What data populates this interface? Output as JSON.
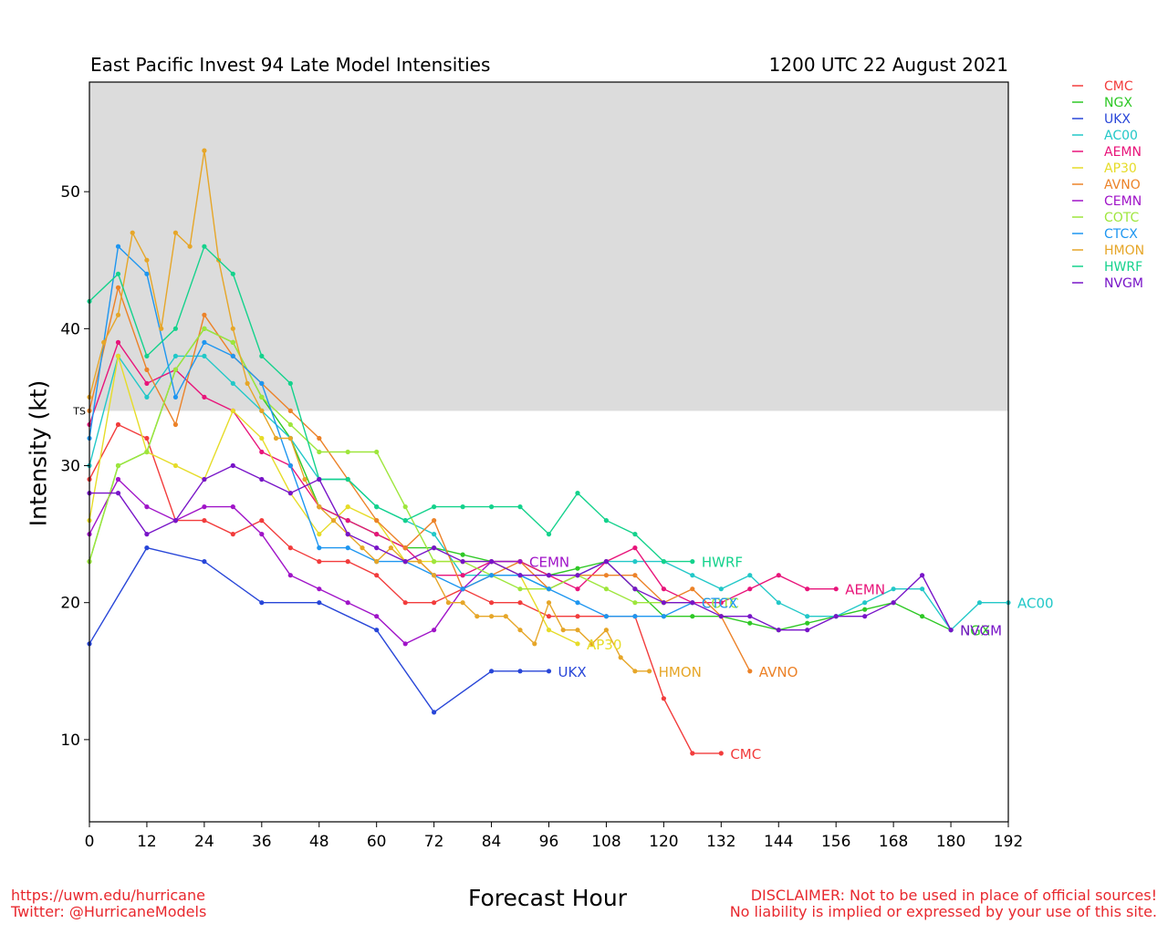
{
  "header": {
    "title": "East Pacific Invest 94 Late Model Intensities",
    "datetime": "1200 UTC 22 August 2021"
  },
  "footer": {
    "url": "https://uwm.edu/hurricane",
    "twitter": "Twitter: @HurricaneModels",
    "disclaimer_line1": "DISCLAIMER: Not to be used in place of official sources!",
    "disclaimer_line2": "No liability is implied or expressed by your use of this site."
  },
  "chart_data": {
    "type": "line",
    "xlabel": "Forecast Hour",
    "ylabel": "Intensity (kt)",
    "xlim": [
      0,
      192
    ],
    "ylim": [
      4,
      58
    ],
    "xticks": [
      0,
      12,
      24,
      36,
      48,
      60,
      72,
      84,
      96,
      108,
      120,
      132,
      144,
      156,
      168,
      180,
      192
    ],
    "yticks": [
      10,
      20,
      30,
      40,
      50
    ],
    "grid": false,
    "legend_position": "right-outside",
    "threshold": {
      "label": "TS",
      "value": 34,
      "shade_above": true,
      "shade_color": "#dcdcdc"
    },
    "series": [
      {
        "name": "CMC",
        "color": "#f23c3c",
        "x": [
          0,
          6,
          12,
          18,
          24,
          30,
          36,
          42,
          48,
          54,
          60,
          66,
          72,
          78,
          84,
          90,
          96,
          102,
          108,
          114,
          120,
          126,
          132
        ],
        "y": [
          29,
          33,
          32,
          26,
          26,
          25,
          26,
          24,
          23,
          23,
          22,
          20,
          20,
          21,
          20,
          20,
          19,
          19,
          19,
          19,
          13,
          9,
          9
        ]
      },
      {
        "name": "NGX",
        "color": "#2ec825",
        "x": [
          0,
          6,
          12,
          18,
          24,
          30,
          36,
          42,
          48,
          54,
          60,
          66,
          72,
          78,
          84,
          90,
          96,
          102,
          108,
          114,
          120,
          126,
          132,
          138,
          144,
          150,
          156,
          162,
          168,
          174,
          180
        ],
        "y": [
          23,
          30,
          31,
          37,
          40,
          39,
          35,
          32,
          27,
          26,
          25,
          24,
          24,
          23.5,
          23,
          23,
          22,
          22.5,
          23,
          21,
          19,
          19,
          19,
          18.5,
          18,
          18.5,
          19,
          19.5,
          20,
          19,
          18
        ]
      },
      {
        "name": "UKX",
        "color": "#2846d8",
        "x": [
          0,
          12,
          24,
          36,
          48,
          60,
          72,
          84,
          90,
          96
        ],
        "y": [
          17,
          24,
          23,
          20,
          20,
          18,
          12,
          15,
          15,
          15
        ]
      },
      {
        "name": "AC00",
        "color": "#22c8c8",
        "x": [
          0,
          6,
          12,
          18,
          24,
          30,
          36,
          42,
          48,
          54,
          60,
          66,
          72,
          78,
          84,
          90,
          96,
          102,
          108,
          114,
          120,
          126,
          132,
          138,
          144,
          150,
          156,
          162,
          168,
          174,
          180,
          186,
          192
        ],
        "y": [
          30,
          38,
          35,
          38,
          38,
          36,
          34,
          32,
          29,
          29,
          27,
          26,
          25,
          22,
          22,
          22,
          21,
          22,
          23,
          23,
          23,
          22,
          21,
          22,
          20,
          19,
          19,
          20,
          21,
          21,
          18,
          20,
          20
        ]
      },
      {
        "name": "AEMN",
        "color": "#e8147a",
        "x": [
          0,
          6,
          12,
          18,
          24,
          30,
          36,
          42,
          48,
          54,
          60,
          66,
          72,
          78,
          84,
          90,
          96,
          102,
          108,
          114,
          120,
          126,
          132,
          138,
          144,
          150,
          156
        ],
        "y": [
          33,
          39,
          36,
          37,
          35,
          34,
          31,
          30,
          27,
          26,
          25,
          24,
          22,
          22,
          23,
          23,
          22,
          21,
          23,
          24,
          21,
          20,
          20,
          21,
          22,
          21,
          21
        ]
      },
      {
        "name": "AP30",
        "color": "#e6dc28",
        "x": [
          0,
          6,
          12,
          18,
          24,
          30,
          36,
          42,
          48,
          54,
          60,
          66,
          72,
          78,
          84,
          90,
          96,
          102
        ],
        "y": [
          26,
          38,
          31,
          30,
          29,
          34,
          32,
          28,
          25,
          27,
          26,
          23,
          23,
          23,
          23,
          22,
          18,
          17
        ]
      },
      {
        "name": "AVNO",
        "color": "#ec8228",
        "x": [
          0,
          6,
          12,
          18,
          24,
          30,
          36,
          42,
          48,
          54,
          60,
          66,
          72,
          78,
          84,
          90,
          96,
          102,
          108,
          114,
          120,
          126,
          132,
          138
        ],
        "y": [
          34,
          43,
          37,
          33,
          41,
          38,
          36,
          34,
          32,
          29,
          26,
          24,
          26,
          21,
          22,
          23,
          21,
          22,
          22,
          22,
          20,
          21,
          19,
          15
        ]
      },
      {
        "name": "CEMN",
        "color": "#a014c8",
        "x": [
          0,
          6,
          12,
          18,
          24,
          30,
          36,
          42,
          48,
          54,
          60,
          66,
          72,
          78,
          84,
          90
        ],
        "y": [
          25,
          29,
          27,
          26,
          27,
          27,
          25,
          22,
          21,
          20,
          19,
          17,
          18,
          21,
          23,
          23
        ]
      },
      {
        "name": "COTC",
        "color": "#9ee63c",
        "x": [
          0,
          6,
          12,
          18,
          24,
          30,
          36,
          42,
          48,
          54,
          60,
          66,
          72,
          78,
          84,
          90,
          96,
          102,
          108,
          114,
          120,
          126
        ],
        "y": [
          23,
          30,
          31,
          37,
          40,
          39,
          35,
          33,
          31,
          31,
          31,
          27,
          23,
          23,
          22,
          21,
          21,
          22,
          21,
          20,
          20,
          20
        ]
      },
      {
        "name": "CTCX",
        "color": "#1e96f0",
        "x": [
          0,
          6,
          12,
          18,
          24,
          30,
          36,
          42,
          48,
          54,
          60,
          66,
          72,
          78,
          84,
          90,
          96,
          102,
          108,
          114,
          120,
          126
        ],
        "y": [
          32,
          46,
          44,
          35,
          39,
          38,
          36,
          30,
          24,
          24,
          23,
          23,
          22,
          21,
          22,
          22,
          21,
          20,
          19,
          19,
          19,
          20
        ]
      },
      {
        "name": "HMON",
        "color": "#e6a628",
        "x": [
          0,
          3,
          6,
          9,
          12,
          15,
          18,
          21,
          24,
          27,
          30,
          33,
          36,
          39,
          42,
          45,
          48,
          51,
          54,
          57,
          60,
          63,
          66,
          69,
          72,
          75,
          78,
          81,
          84,
          87,
          90,
          93,
          96,
          99,
          102,
          105,
          108,
          111,
          114,
          117
        ],
        "y": [
          35,
          39,
          41,
          47,
          45,
          40,
          47,
          46,
          53,
          45,
          40,
          36,
          34,
          32,
          32,
          29,
          27,
          26,
          25,
          24,
          23,
          24,
          23,
          23,
          22,
          20,
          20,
          19,
          19,
          19,
          18,
          17,
          20,
          18,
          18,
          17,
          18,
          16,
          15,
          15
        ]
      },
      {
        "name": "HWRF",
        "color": "#14d28c",
        "x": [
          0,
          6,
          12,
          18,
          24,
          30,
          36,
          42,
          48,
          54,
          60,
          66,
          72,
          78,
          84,
          90,
          96,
          102,
          108,
          114,
          120,
          126
        ],
        "y": [
          42,
          44,
          38,
          40,
          46,
          44,
          38,
          36,
          29,
          29,
          27,
          26,
          27,
          27,
          27,
          27,
          25,
          28,
          26,
          25,
          23,
          23
        ]
      },
      {
        "name": "NVGM",
        "color": "#7814c8",
        "x": [
          0,
          6,
          12,
          18,
          24,
          30,
          36,
          42,
          48,
          54,
          60,
          66,
          72,
          78,
          84,
          90,
          96,
          102,
          108,
          114,
          120,
          126,
          132,
          138,
          144,
          150,
          156,
          162,
          168,
          174,
          180
        ],
        "y": [
          28,
          28,
          25,
          26,
          29,
          30,
          29,
          28,
          29,
          25,
          24,
          23,
          24,
          23,
          23,
          22,
          22,
          22,
          23,
          21,
          20,
          20,
          19,
          19,
          18,
          18,
          19,
          19,
          20,
          22,
          18
        ]
      }
    ],
    "end_labels": [
      {
        "text": "CMC",
        "series": "CMC",
        "x": 132,
        "y": 9
      },
      {
        "text": "UKX",
        "series": "UKX",
        "x": 96,
        "y": 15
      },
      {
        "text": "AC00",
        "series": "AC00",
        "x": 192,
        "y": 20
      },
      {
        "text": "AEMN",
        "series": "AEMN",
        "x": 156,
        "y": 21
      },
      {
        "text": "AP30",
        "series": "AP30",
        "x": 102,
        "y": 17
      },
      {
        "text": "AVNO",
        "series": "AVNO",
        "x": 138,
        "y": 15
      },
      {
        "text": "CEMN",
        "series": "CEMN",
        "x": 90,
        "y": 23
      },
      {
        "text": "COTC",
        "series": "COTC",
        "x": 126,
        "y": 20
      },
      {
        "text": "CTCX",
        "series": "CTCX",
        "x": 126,
        "y": 20
      },
      {
        "text": "HMON",
        "series": "HMON",
        "x": 117,
        "y": 15
      },
      {
        "text": "HWRF",
        "series": "HWRF",
        "x": 126,
        "y": 23
      },
      {
        "text": "NGX",
        "series": "NGX",
        "x": 180,
        "y": 18
      },
      {
        "text": "NVGM",
        "series": "NVGM",
        "x": 180,
        "y": 18
      }
    ]
  }
}
